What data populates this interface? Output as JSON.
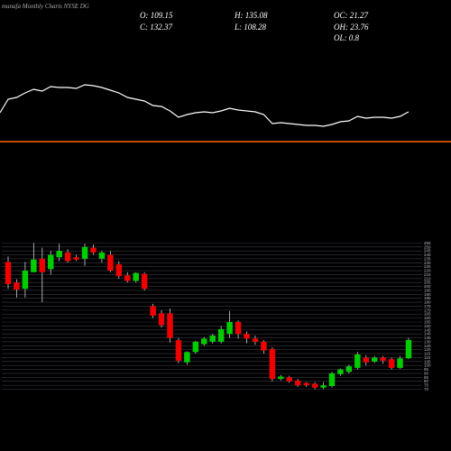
{
  "chart_data": {
    "type": "candlestick",
    "title": "munafa Monthly Charts NYSE DG",
    "info": [
      "O: 109.15",
      "H: 135.08",
      "OC: 21.27",
      "C: 132.37",
      "L: 108.28",
      "OH: 23.76",
      "OL: 0.8"
    ],
    "up_color": "#00cc00",
    "down_color": "#ee0000",
    "ylim": [
      66,
      260
    ],
    "yticks": [
      70,
      75,
      80,
      85,
      90,
      95,
      100,
      105,
      110,
      115,
      120,
      125,
      130,
      135,
      140,
      145,
      150,
      155,
      160,
      165,
      170,
      175,
      180,
      185,
      190,
      195,
      200,
      205,
      210,
      215,
      220,
      225,
      230,
      235,
      240,
      245,
      250,
      255
    ],
    "open": [
      231,
      205,
      197,
      218,
      235,
      222,
      237,
      243,
      237,
      235,
      249,
      235,
      240,
      228,
      214,
      207,
      216,
      175,
      166,
      166,
      132,
      104,
      117,
      127,
      130,
      130,
      140,
      155,
      140,
      134,
      130,
      121,
      83,
      85,
      81,
      78,
      77,
      72,
      74,
      89,
      92,
      97,
      110,
      105,
      110,
      108,
      97,
      109.15
    ],
    "high": [
      238,
      209,
      231,
      255,
      249,
      245,
      254,
      247,
      240,
      254,
      253,
      245,
      245,
      232,
      218,
      218,
      218,
      178,
      170,
      172,
      135,
      118,
      131,
      136,
      140,
      150,
      169,
      157,
      143,
      138,
      132,
      123,
      88,
      87,
      83,
      79,
      79,
      79,
      92,
      96,
      101,
      117,
      113,
      112,
      112,
      110,
      112,
      135.08
    ],
    "low": [
      197,
      186,
      186,
      218,
      180,
      215,
      232,
      230,
      232,
      226,
      240,
      230,
      218,
      210,
      205,
      205,
      195,
      160,
      148,
      129,
      103,
      101,
      115,
      125,
      128,
      128,
      135,
      134,
      128,
      126,
      115,
      80,
      81,
      78,
      73,
      73,
      70,
      70,
      72,
      87,
      90,
      95,
      100,
      103,
      102,
      95,
      96,
      108.28
    ],
    "close": [
      203,
      196,
      220,
      234,
      218,
      240,
      245,
      232,
      234,
      250,
      243,
      243,
      220,
      213,
      207,
      217,
      197,
      163,
      151,
      135,
      106,
      117,
      130,
      134,
      138,
      146,
      155,
      140,
      134,
      130,
      119,
      83,
      86,
      80,
      75,
      75,
      72,
      75,
      90,
      95,
      99,
      114,
      104,
      110,
      106,
      97,
      109,
      132.37
    ],
    "indicator": {
      "color": "#ffffff",
      "ylim": [
        0,
        60
      ],
      "values": [
        40,
        42,
        47,
        51,
        49,
        54,
        53,
        53,
        52,
        56,
        55,
        53,
        50,
        47,
        42,
        40,
        38,
        33,
        32,
        27,
        20,
        23,
        25,
        26,
        25,
        27,
        30,
        28,
        27,
        26,
        23,
        13,
        14,
        13,
        12,
        11,
        11,
        10,
        12,
        15,
        16,
        21,
        19,
        20,
        20,
        19,
        21,
        26
      ]
    },
    "level_line_color": "#ff6600"
  }
}
